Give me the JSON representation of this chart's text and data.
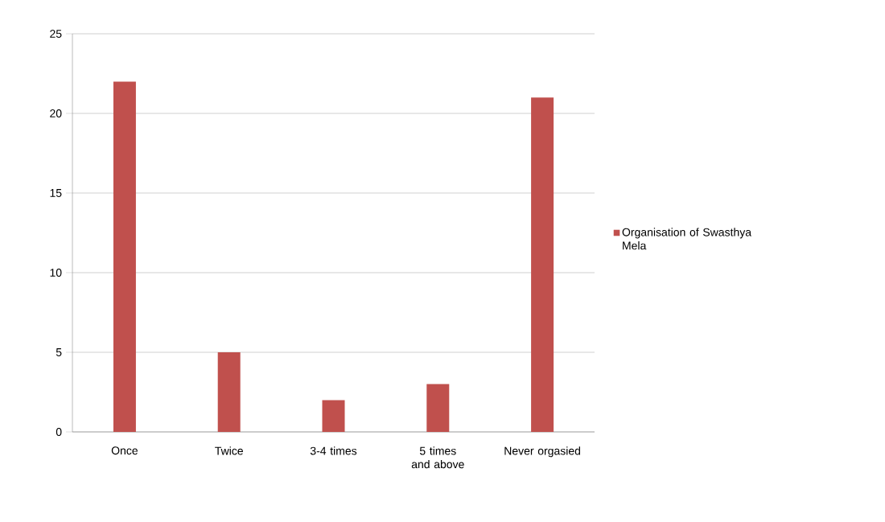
{
  "chart_data": {
    "type": "bar",
    "categories": [
      "Once",
      "Twice",
      "3-4 times",
      "5 times and above",
      "Never orgasied"
    ],
    "series": [
      {
        "name": "Organisation of Swasthya Mela",
        "color": "#c0504d",
        "values": [
          22,
          5,
          2,
          3,
          21
        ]
      }
    ],
    "ylim": [
      0,
      25
    ],
    "yticks": [
      0,
      5,
      10,
      15,
      20,
      25
    ],
    "grid": "y",
    "legend": "right"
  }
}
